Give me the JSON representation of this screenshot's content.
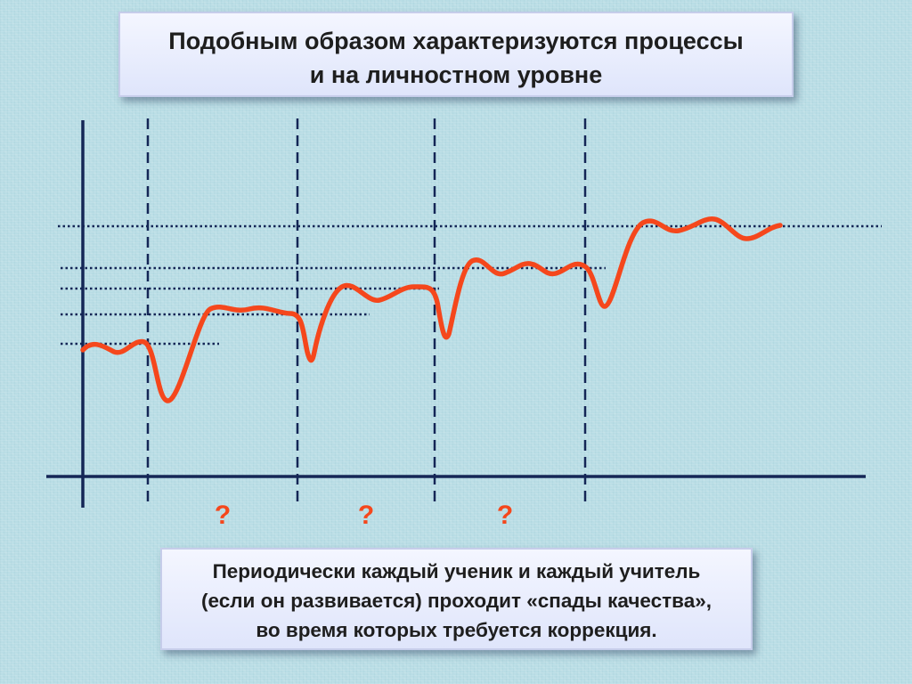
{
  "title": {
    "line1": "Подобным образом характеризуются процессы",
    "line2": "и на личностном уровне"
  },
  "caption": {
    "line1": "Периодически каждый ученик и каждый учитель",
    "line2": "(если он развивается) проходит «спады качества»,",
    "line3": "во время которых требуется коррекция."
  },
  "diagram": {
    "markers": [
      "?",
      "?",
      "?"
    ],
    "colors": {
      "axis": "#142656",
      "curve": "#f5471c",
      "marker": "#f5471c",
      "grid": "#142656"
    }
  }
}
